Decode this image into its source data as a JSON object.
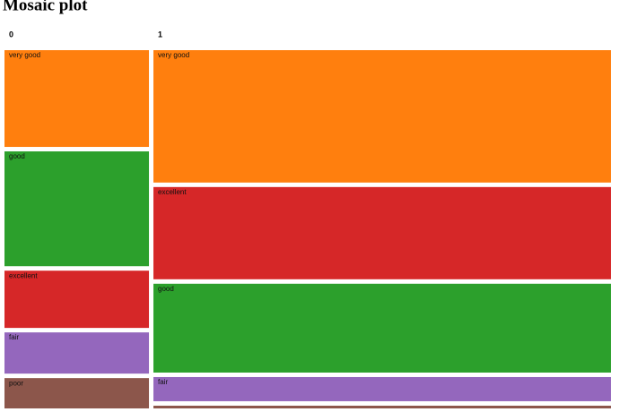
{
  "chart_data": {
    "type": "mosaic",
    "title": "Mosaic plot",
    "series": [
      {
        "name": "0",
        "width": 24,
        "categories": [
          "very good",
          "good",
          "excellent",
          "fair",
          "poor"
        ],
        "colors": [
          "#ff7f0e",
          "#2ca02c",
          "#d62728",
          "#9467bd",
          "#8c564b"
        ],
        "values": [
          28.4,
          33.7,
          16.8,
          12.1,
          8.9
        ]
      },
      {
        "name": "1",
        "width": 76,
        "categories": [
          "very good",
          "excellent",
          "good",
          "fair",
          "poor"
        ],
        "colors": [
          "#ff7f0e",
          "#d62728",
          "#2ca02c",
          "#9467bd",
          "#8c564b"
        ],
        "values": [
          38.9,
          27.1,
          26.1,
          7.1,
          0.8
        ]
      }
    ]
  }
}
